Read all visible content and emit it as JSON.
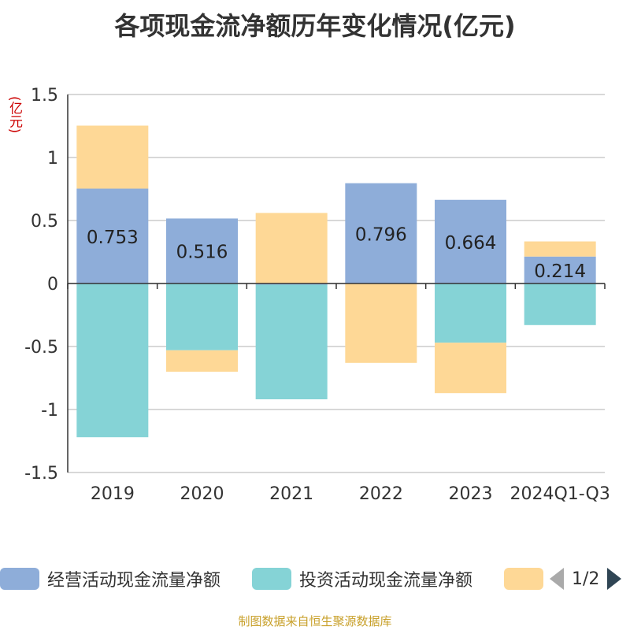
{
  "title": "各项现金流净额历年变化情况(亿元)",
  "unit_label": "(亿元)",
  "source": "制图数据来自恒生聚源数据库",
  "pager": "1/2",
  "colors": {
    "operating": "#8eadd9",
    "investing": "#85d3d6",
    "financing": "#fed896"
  },
  "chart_data": {
    "type": "bar",
    "stacked": true,
    "categories": [
      "2019",
      "2020",
      "2021",
      "2022",
      "2023",
      "2024Q1-Q3"
    ],
    "ylim": [
      -1.5,
      1.5
    ],
    "yticks": [
      -1.5,
      -1,
      -0.5,
      0,
      0.5,
      1,
      1.5
    ],
    "ytick_labels": [
      "-1.5",
      "-1",
      "-0.5",
      "0",
      "0.5",
      "1",
      "1.5"
    ],
    "grid": true,
    "series": [
      {
        "name": "经营活动现金流量净额",
        "key": "operating",
        "values": [
          0.753,
          0.516,
          -0.009,
          0.796,
          0.664,
          0.214
        ],
        "labels": [
          "0.753",
          "0.516",
          "",
          "0.796",
          "0.664",
          "0.214"
        ]
      },
      {
        "name": "投资活动现金流量净额",
        "key": "investing",
        "values": [
          -1.22,
          -0.53,
          -0.91,
          0,
          -0.47,
          -0.33
        ],
        "labels": [
          "",
          "",
          "",
          "",
          "",
          ""
        ]
      },
      {
        "name": "",
        "key": "financing",
        "values": [
          0.5,
          -0.17,
          0.56,
          -0.63,
          -0.4,
          0.12
        ],
        "labels": [
          "",
          "",
          "",
          "",
          "",
          ""
        ]
      }
    ],
    "legend_position": "bottom"
  }
}
